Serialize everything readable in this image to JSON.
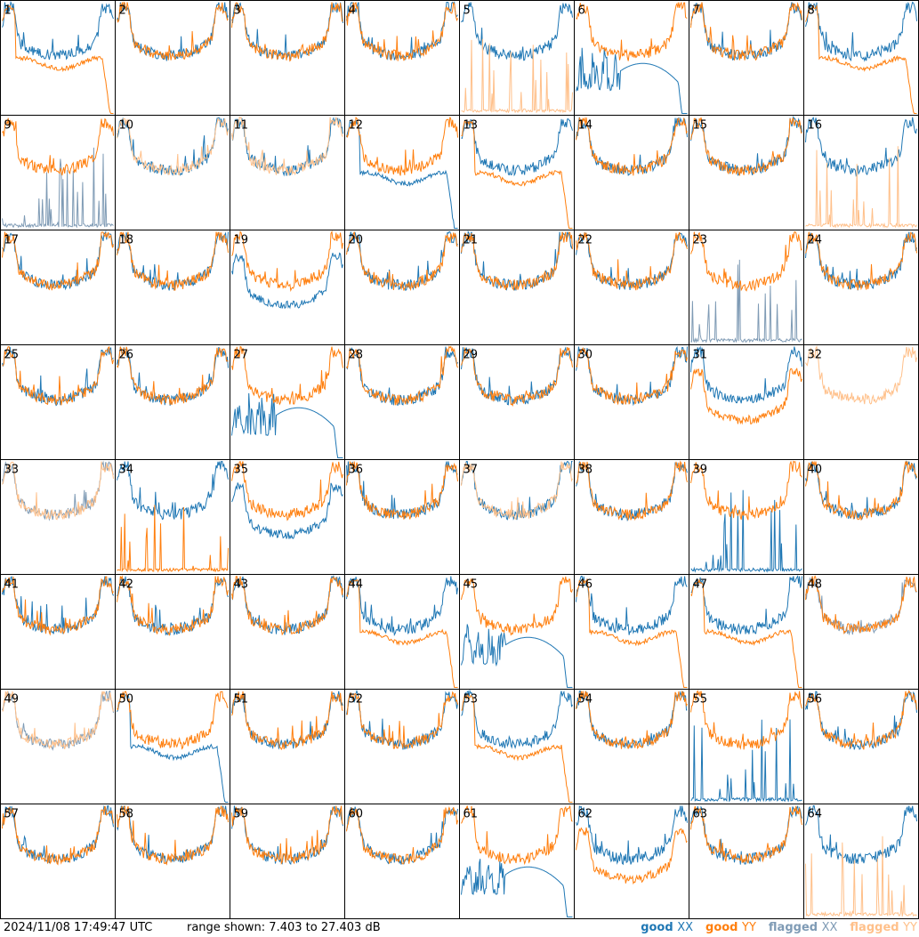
{
  "footer": {
    "timestamp": "2024/11/08 17:49:47 UTC",
    "range_label": "range shown:",
    "range_text": "7.403 to 27.403 dB"
  },
  "legend": [
    {
      "label": "good",
      "pol": "XX",
      "color": "#1f77b4"
    },
    {
      "label": "good",
      "pol": "YY",
      "color": "#ff7f0e"
    },
    {
      "label": "flagged",
      "pol": "XX",
      "color": "#7f9bb5"
    },
    {
      "label": "flagged",
      "pol": "YY",
      "color": "#ffc08a"
    }
  ],
  "colors": {
    "good_xx": "#1f77b4",
    "good_yy": "#ff7f0e",
    "flagged_xx": "#7f9bb5",
    "flagged_yy": "#ffc08a"
  },
  "chart_data": {
    "type": "line",
    "title": "",
    "xlabel": "",
    "ylabel": "",
    "units": "dB",
    "ylim": [
      7.403,
      27.403
    ],
    "grid_rows": 8,
    "grid_cols": 8,
    "series_names": [
      "good XX",
      "good YY",
      "flagged XX",
      "flagged YY"
    ],
    "panels": [
      {
        "n": 1,
        "xx": "good",
        "yy": "good",
        "shape_xx": "normal",
        "shape_yy": "rolloff"
      },
      {
        "n": 2,
        "xx": "good",
        "yy": "good",
        "shape_xx": "normal",
        "shape_yy": "normal"
      },
      {
        "n": 3,
        "xx": "good",
        "yy": "good",
        "shape_xx": "normal",
        "shape_yy": "normal"
      },
      {
        "n": 4,
        "xx": "good",
        "yy": "good",
        "shape_xx": "normal",
        "shape_yy": "normal"
      },
      {
        "n": 5,
        "xx": "good",
        "yy": "flagged",
        "shape_xx": "normal",
        "shape_yy": "spiky"
      },
      {
        "n": 6,
        "xx": "good",
        "yy": "good",
        "shape_xx": "dip",
        "shape_yy": "normal"
      },
      {
        "n": 7,
        "xx": "good",
        "yy": "good",
        "shape_xx": "normal",
        "shape_yy": "normal"
      },
      {
        "n": 8,
        "xx": "good",
        "yy": "good",
        "shape_xx": "normal",
        "shape_yy": "rolloff"
      },
      {
        "n": 9,
        "xx": "flagged",
        "yy": "good",
        "shape_xx": "spiky",
        "shape_yy": "normal"
      },
      {
        "n": 10,
        "xx": "good",
        "yy": "flagged",
        "shape_xx": "normal",
        "shape_yy": "normal"
      },
      {
        "n": 11,
        "xx": "good",
        "yy": "flagged",
        "shape_xx": "normal",
        "shape_yy": "normal"
      },
      {
        "n": 12,
        "xx": "good",
        "yy": "good",
        "shape_xx": "rolloff",
        "shape_yy": "normal"
      },
      {
        "n": 13,
        "xx": "good",
        "yy": "good",
        "shape_xx": "normal",
        "shape_yy": "rolloff"
      },
      {
        "n": 14,
        "xx": "good",
        "yy": "good",
        "shape_xx": "normal",
        "shape_yy": "normal"
      },
      {
        "n": 15,
        "xx": "good",
        "yy": "good",
        "shape_xx": "normal",
        "shape_yy": "normal"
      },
      {
        "n": 16,
        "xx": "good",
        "yy": "flagged",
        "shape_xx": "normal",
        "shape_yy": "spiky"
      },
      {
        "n": 17,
        "xx": "good",
        "yy": "good",
        "shape_xx": "normal",
        "shape_yy": "normal"
      },
      {
        "n": 18,
        "xx": "good",
        "yy": "good",
        "shape_xx": "normal",
        "shape_yy": "normal"
      },
      {
        "n": 19,
        "xx": "good",
        "yy": "good",
        "shape_xx": "low",
        "shape_yy": "normal"
      },
      {
        "n": 20,
        "xx": "good",
        "yy": "good",
        "shape_xx": "normal",
        "shape_yy": "normal"
      },
      {
        "n": 21,
        "xx": "good",
        "yy": "good",
        "shape_xx": "normal",
        "shape_yy": "normal"
      },
      {
        "n": 22,
        "xx": "good",
        "yy": "good",
        "shape_xx": "normal",
        "shape_yy": "normal"
      },
      {
        "n": 23,
        "xx": "flagged",
        "yy": "good",
        "shape_xx": "spiky",
        "shape_yy": "normal"
      },
      {
        "n": 24,
        "xx": "good",
        "yy": "good",
        "shape_xx": "normal",
        "shape_yy": "normal"
      },
      {
        "n": 25,
        "xx": "good",
        "yy": "good",
        "shape_xx": "normal",
        "shape_yy": "normal"
      },
      {
        "n": 26,
        "xx": "good",
        "yy": "good",
        "shape_xx": "normal",
        "shape_yy": "normal"
      },
      {
        "n": 27,
        "xx": "good",
        "yy": "good",
        "shape_xx": "dip",
        "shape_yy": "normal"
      },
      {
        "n": 28,
        "xx": "good",
        "yy": "good",
        "shape_xx": "normal",
        "shape_yy": "normal"
      },
      {
        "n": 29,
        "xx": "good",
        "yy": "good",
        "shape_xx": "normal",
        "shape_yy": "normal"
      },
      {
        "n": 30,
        "xx": "good",
        "yy": "good",
        "shape_xx": "normal",
        "shape_yy": "normal"
      },
      {
        "n": 31,
        "xx": "good",
        "yy": "good",
        "shape_xx": "normal",
        "shape_yy": "low"
      },
      {
        "n": 32,
        "xx": "good",
        "yy": "flagged",
        "shape_xx": "none",
        "shape_yy": "normal"
      },
      {
        "n": 33,
        "xx": "flagged",
        "yy": "flagged",
        "shape_xx": "normal",
        "shape_yy": "normal"
      },
      {
        "n": 34,
        "xx": "good",
        "yy": "good",
        "shape_xx": "normal",
        "shape_yy": "spiky"
      },
      {
        "n": 35,
        "xx": "good",
        "yy": "good",
        "shape_xx": "low",
        "shape_yy": "normal"
      },
      {
        "n": 36,
        "xx": "good",
        "yy": "good",
        "shape_xx": "normal",
        "shape_yy": "normal"
      },
      {
        "n": 37,
        "xx": "good",
        "yy": "flagged",
        "shape_xx": "normal",
        "shape_yy": "normal"
      },
      {
        "n": 38,
        "xx": "good",
        "yy": "good",
        "shape_xx": "normal",
        "shape_yy": "normal"
      },
      {
        "n": 39,
        "xx": "good",
        "yy": "good",
        "shape_xx": "spiky",
        "shape_yy": "normal"
      },
      {
        "n": 40,
        "xx": "good",
        "yy": "good",
        "shape_xx": "normal",
        "shape_yy": "normal"
      },
      {
        "n": 41,
        "xx": "good",
        "yy": "good",
        "shape_xx": "normal",
        "shape_yy": "normal"
      },
      {
        "n": 42,
        "xx": "good",
        "yy": "good",
        "shape_xx": "normal",
        "shape_yy": "normal"
      },
      {
        "n": 43,
        "xx": "good",
        "yy": "good",
        "shape_xx": "normal",
        "shape_yy": "normal"
      },
      {
        "n": 44,
        "xx": "good",
        "yy": "good",
        "shape_xx": "normal",
        "shape_yy": "rolloff"
      },
      {
        "n": 45,
        "xx": "good",
        "yy": "good",
        "shape_xx": "dip",
        "shape_yy": "normal"
      },
      {
        "n": 46,
        "xx": "good",
        "yy": "good",
        "shape_xx": "normal",
        "shape_yy": "rolloff"
      },
      {
        "n": 47,
        "xx": "good",
        "yy": "good",
        "shape_xx": "normal",
        "shape_yy": "rolloff"
      },
      {
        "n": 48,
        "xx": "flagged",
        "yy": "good",
        "shape_xx": "normal",
        "shape_yy": "normal"
      },
      {
        "n": 49,
        "xx": "flagged",
        "yy": "flagged",
        "shape_xx": "normal",
        "shape_yy": "normal"
      },
      {
        "n": 50,
        "xx": "good",
        "yy": "good",
        "shape_xx": "rolloff",
        "shape_yy": "normal"
      },
      {
        "n": 51,
        "xx": "good",
        "yy": "good",
        "shape_xx": "normal",
        "shape_yy": "normal"
      },
      {
        "n": 52,
        "xx": "good",
        "yy": "good",
        "shape_xx": "normal",
        "shape_yy": "normal"
      },
      {
        "n": 53,
        "xx": "good",
        "yy": "good",
        "shape_xx": "normal",
        "shape_yy": "rolloff"
      },
      {
        "n": 54,
        "xx": "good",
        "yy": "good",
        "shape_xx": "normal",
        "shape_yy": "normal"
      },
      {
        "n": 55,
        "xx": "good",
        "yy": "good",
        "shape_xx": "spiky",
        "shape_yy": "normal"
      },
      {
        "n": 56,
        "xx": "good",
        "yy": "good",
        "shape_xx": "normal",
        "shape_yy": "normal"
      },
      {
        "n": 57,
        "xx": "good",
        "yy": "good",
        "shape_xx": "normal",
        "shape_yy": "normal"
      },
      {
        "n": 58,
        "xx": "good",
        "yy": "good",
        "shape_xx": "normal",
        "shape_yy": "normal"
      },
      {
        "n": 59,
        "xx": "good",
        "yy": "good",
        "shape_xx": "normal",
        "shape_yy": "normal"
      },
      {
        "n": 60,
        "xx": "good",
        "yy": "good",
        "shape_xx": "normal",
        "shape_yy": "normal"
      },
      {
        "n": 61,
        "xx": "good",
        "yy": "good",
        "shape_xx": "dip",
        "shape_yy": "normal"
      },
      {
        "n": 62,
        "xx": "good",
        "yy": "good",
        "shape_xx": "normal",
        "shape_yy": "low"
      },
      {
        "n": 63,
        "xx": "good",
        "yy": "good",
        "shape_xx": "normal",
        "shape_yy": "normal"
      },
      {
        "n": 64,
        "xx": "good",
        "yy": "flagged",
        "shape_xx": "normal",
        "shape_yy": "spiky"
      }
    ]
  }
}
